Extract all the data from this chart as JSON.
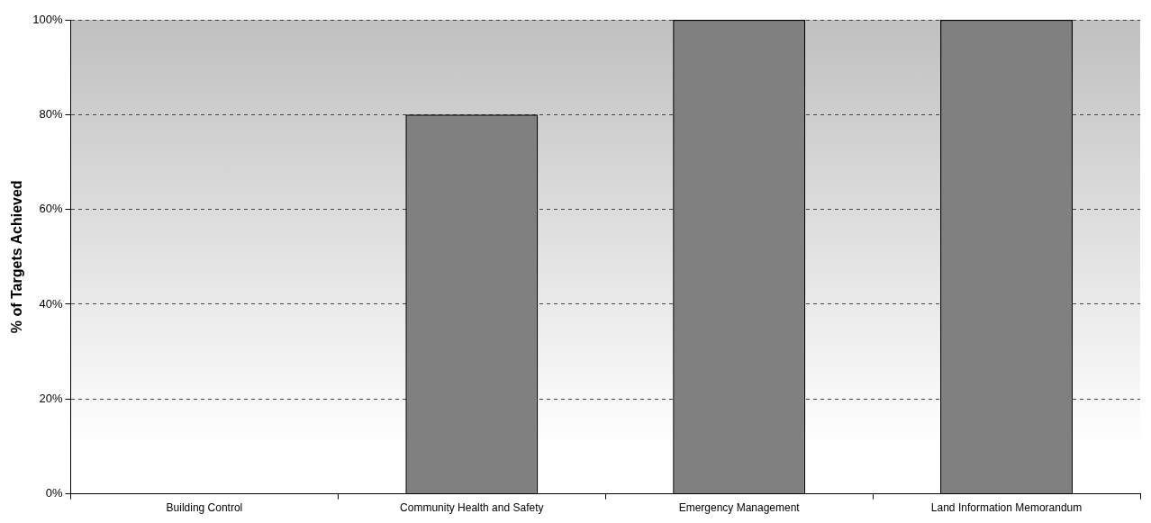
{
  "chart_data": {
    "type": "bar",
    "ylabel": "% of Targets Achieved",
    "categories": [
      "Building Control",
      "Community Health and Safety",
      "Emergency Management",
      "Land Information Memorandum"
    ],
    "values": [
      0,
      80,
      100,
      100
    ],
    "color": "#808080",
    "ylim": [
      0,
      100
    ],
    "yticks": [
      {
        "value": 0,
        "label": "0%"
      },
      {
        "value": 20,
        "label": "20%"
      },
      {
        "value": 40,
        "label": "40%"
      },
      {
        "value": 60,
        "label": "60%"
      },
      {
        "value": 80,
        "label": "80%"
      },
      {
        "value": 100,
        "label": "100%"
      }
    ],
    "grid": "y",
    "line_style": "dashed",
    "legend": false
  }
}
